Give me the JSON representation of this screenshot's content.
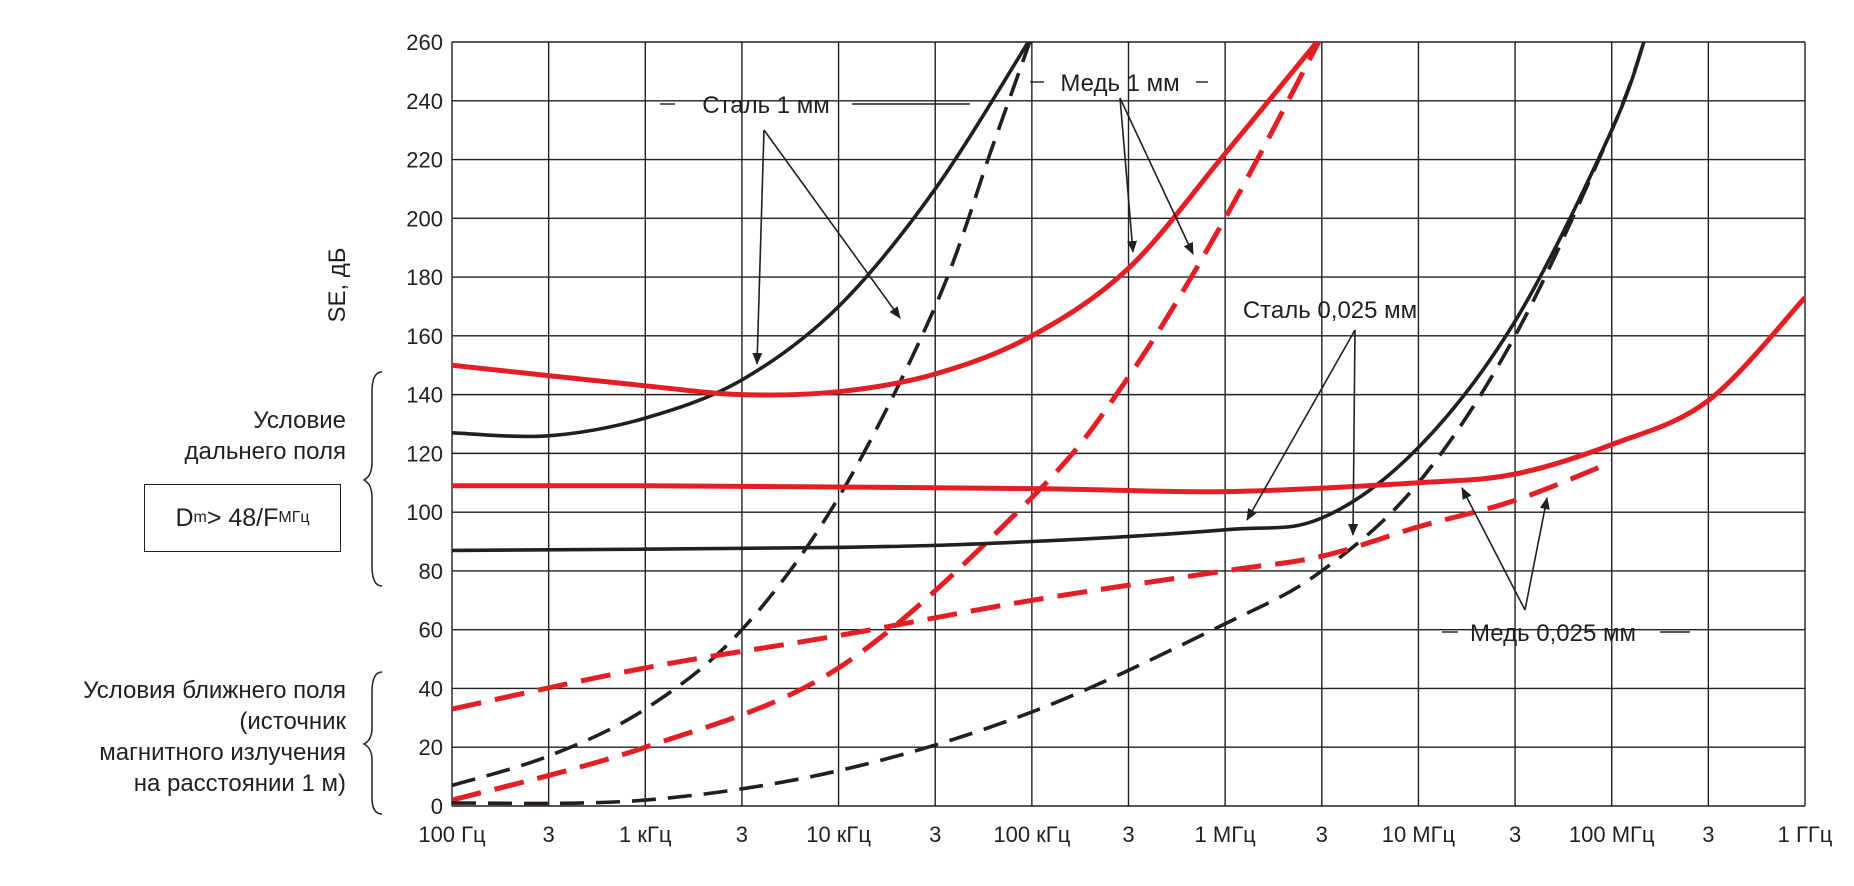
{
  "chart_data": {
    "type": "line",
    "ylabel": "SE, дБ",
    "y_axis": {
      "min": 0,
      "max": 260,
      "step": 20,
      "ticks": [
        "0",
        "20",
        "40",
        "60",
        "80",
        "100",
        "120",
        "140",
        "160",
        "180",
        "200",
        "220",
        "240",
        "260"
      ]
    },
    "x_axis": {
      "scale": "log",
      "min_hz": 100,
      "max_hz": 1000000000,
      "ticks": [
        "100 Гц",
        "3",
        "1 кГц",
        "3",
        "10 кГц",
        "3",
        "100 кГц",
        "3",
        "1 МГц",
        "3",
        "10 МГц",
        "3",
        "100 МГц",
        "3",
        "1 ГГц"
      ]
    },
    "series": [
      {
        "name": "Сталь 1 мм — дальнее поле",
        "color": "#231f20",
        "style": "solid",
        "points": [
          [
            100,
            127
          ],
          [
            316,
            126
          ],
          [
            1000,
            132
          ],
          [
            3162,
            145
          ],
          [
            10000,
            170
          ],
          [
            31623,
            210
          ],
          [
            100000,
            262
          ]
        ]
      },
      {
        "name": "Сталь 1 мм — ближнее поле",
        "color": "#231f20",
        "style": "dashed",
        "points": [
          [
            100,
            7
          ],
          [
            316,
            17
          ],
          [
            1000,
            33
          ],
          [
            3162,
            60
          ],
          [
            10000,
            105
          ],
          [
            31623,
            170
          ],
          [
            63000,
            225
          ],
          [
            100000,
            262
          ]
        ]
      },
      {
        "name": "Медь 1 мм — дальнее поле",
        "color": "#e31e24",
        "style": "solid",
        "points": [
          [
            100,
            150
          ],
          [
            1000,
            143
          ],
          [
            3162,
            140
          ],
          [
            10000,
            141
          ],
          [
            31623,
            147
          ],
          [
            100000,
            160
          ],
          [
            316228,
            183
          ],
          [
            1000000,
            222
          ],
          [
            3162000,
            262
          ]
        ]
      },
      {
        "name": "Медь 1 мм — ближнее поле",
        "color": "#e31e24",
        "style": "dashed",
        "points": [
          [
            100,
            2
          ],
          [
            1000,
            20
          ],
          [
            10000,
            47
          ],
          [
            100000,
            105
          ],
          [
            316228,
            146
          ],
          [
            1000000,
            200
          ],
          [
            3162000,
            262
          ]
        ]
      },
      {
        "name": "Сталь 0,025 мм — дальнее поле",
        "color": "#231f20",
        "style": "solid",
        "points": [
          [
            100,
            87
          ],
          [
            10000,
            88
          ],
          [
            100000,
            90
          ],
          [
            1000000,
            94
          ],
          [
            3162000,
            98
          ],
          [
            10000000,
            122
          ],
          [
            31623000,
            165
          ],
          [
            100000000,
            230
          ],
          [
            150000000,
            262
          ]
        ]
      },
      {
        "name": "Сталь 0,025 мм — ближнее поле",
        "color": "#231f20",
        "style": "dashed",
        "points": [
          [
            100,
            1
          ],
          [
            1000,
            2
          ],
          [
            10000,
            12
          ],
          [
            100000,
            32
          ],
          [
            1000000,
            62
          ],
          [
            3162000,
            80
          ],
          [
            10000000,
            110
          ],
          [
            31623000,
            160
          ],
          [
            100000000,
            230
          ],
          [
            150000000,
            262
          ]
        ]
      },
      {
        "name": "Медь 0,025 мм — дальнее поле",
        "color": "#e31e24",
        "style": "solid",
        "points": [
          [
            100,
            109
          ],
          [
            1000,
            109
          ],
          [
            100000,
            108
          ],
          [
            1000000,
            107
          ],
          [
            10000000,
            110
          ],
          [
            31623000,
            113
          ],
          [
            100000000,
            123
          ],
          [
            316228000,
            138
          ],
          [
            1000000000,
            173
          ]
        ]
      },
      {
        "name": "Медь 0,025 мм — ближнее поле",
        "color": "#e31e24",
        "style": "dashed",
        "points": [
          [
            100,
            33
          ],
          [
            1000,
            47
          ],
          [
            10000,
            58
          ],
          [
            100000,
            70
          ],
          [
            1000000,
            80
          ],
          [
            3162000,
            85
          ],
          [
            10000000,
            95
          ],
          [
            31623000,
            104
          ],
          [
            100000000,
            117
          ]
        ]
      }
    ],
    "annotations": [
      {
        "id": "steel1",
        "text": "Сталь 1 мм"
      },
      {
        "id": "copper1",
        "text": "Медь 1 мм"
      },
      {
        "id": "steel025",
        "text": "Сталь 0,025 мм"
      },
      {
        "id": "copper025",
        "text": "Медь 0,025 мм"
      }
    ]
  },
  "side_labels": {
    "far_field": [
      "Условие",
      "дальнего поля"
    ],
    "formula": {
      "base": "D",
      "sub1": "m",
      "mid": " > 48/F",
      "sub2": "МГц"
    },
    "near_field": [
      "Условия ближнего поля",
      "(источник",
      "магнитного излучения",
      "на расстоянии 1 м)"
    ]
  }
}
